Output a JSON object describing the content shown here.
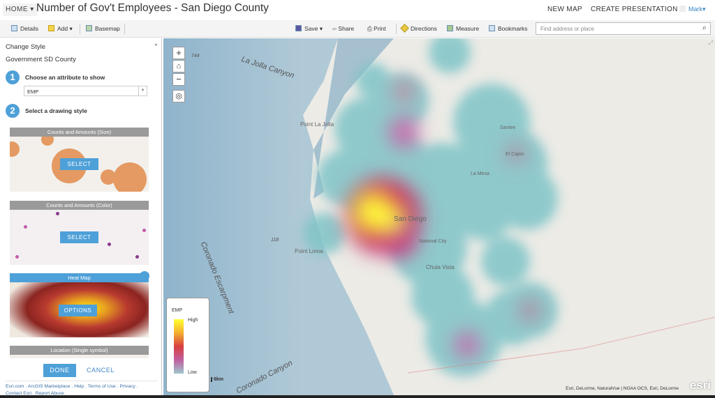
{
  "header": {
    "home": "HOME",
    "title": "Number of Gov't Employees - San Diego County",
    "new_map": "NEW MAP",
    "create_presentation": "CREATE PRESENTATION",
    "user": "Mark"
  },
  "toolbar": {
    "details": "Details",
    "add": "Add",
    "basemap": "Basemap",
    "save": "Save",
    "share": "Share",
    "print": "Print",
    "directions": "Directions",
    "measure": "Measure",
    "bookmarks": "Bookmarks",
    "search_placeholder": "Find address or place"
  },
  "panel": {
    "heading": "Change Style",
    "layer": "Government SD County",
    "step1_num": "1",
    "step1": "Choose an attribute to show",
    "attribute": "EMP",
    "step2_num": "2",
    "step2": "Select a drawing style",
    "cards": [
      {
        "title": "Counts and Amounts (Size)",
        "button": "SELECT"
      },
      {
        "title": "Counts and Amounts (Color)",
        "button": "SELECT"
      },
      {
        "title": "Heat Map",
        "button": "OPTIONS",
        "selected": true
      },
      {
        "title": "Location (Single symbol)"
      }
    ],
    "done": "DONE",
    "cancel": "CANCEL",
    "footer_links": [
      "Esri.com",
      "ArcGIS Marketplace",
      "Help",
      "Terms of Use",
      "Privacy",
      "Contact Esri",
      "Report Abuse"
    ]
  },
  "map": {
    "labels": {
      "la_jolla_canyon": "La Jolla Canyon",
      "depth_744": "744",
      "point_la_jolla": "Point La Jolla",
      "san_diego": "San Diego",
      "point_loma": "Point Loma",
      "depth_118": "118",
      "coronado_escarpment": "Coronado Escarpment",
      "coronado_canyon": "Coronado Canyon",
      "national_city": "National City",
      "chula_vista": "Chula Vista",
      "la_mesa": "La Mesa",
      "el_cajon": "El Cajon",
      "santee": "Santee"
    },
    "zoom_in": "+",
    "zoom_out": "−",
    "scale": "6km",
    "attribution": "Esri, DeLorme, NaturalVue | NOAA OCS, Esri, DeLorme",
    "logo": "esri",
    "legend": {
      "field": "EMP",
      "high": "High",
      "low": "Low"
    },
    "colors": {
      "accent": "#4ea0d8",
      "heat_low": "#7fc4c8",
      "heat_high": "#ffff33"
    }
  }
}
